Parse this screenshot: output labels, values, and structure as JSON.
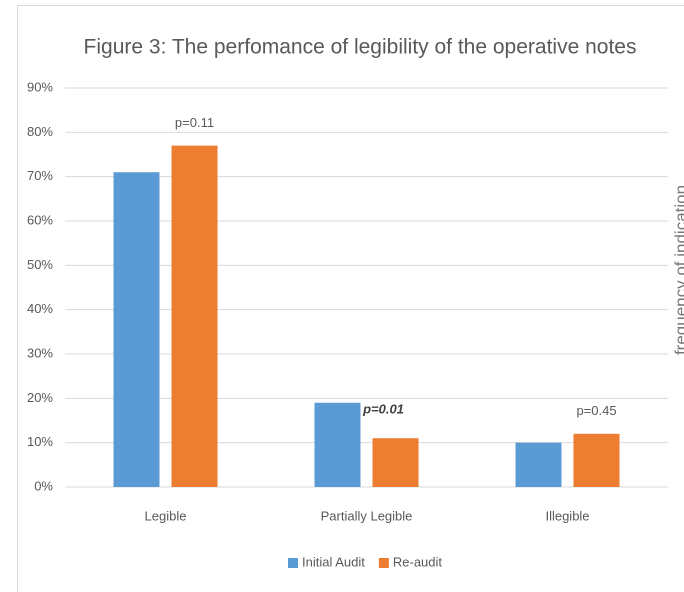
{
  "chart_data": {
    "type": "bar",
    "title": "Figure 3: The perfomance of legibility of the operative notes",
    "categories": [
      "Legible",
      "Partially Legible",
      "Illegible"
    ],
    "series": [
      {
        "name": "Initial Audit",
        "color": "#5b9bd5",
        "values": [
          71,
          19,
          10
        ]
      },
      {
        "name": "Re-audit",
        "color": "#ed7d31",
        "values": [
          77,
          11,
          12
        ]
      }
    ],
    "ylim": [
      0,
      90
    ],
    "yticks": [
      {
        "value": 0,
        "label": "0%"
      },
      {
        "value": 10,
        "label": "10%"
      },
      {
        "value": 20,
        "label": "20%"
      },
      {
        "value": 30,
        "label": "30%"
      },
      {
        "value": 40,
        "label": "40%"
      },
      {
        "value": 50,
        "label": "50%"
      },
      {
        "value": 60,
        "label": "60%"
      },
      {
        "value": 70,
        "label": "70%"
      },
      {
        "value": 80,
        "label": "80%"
      },
      {
        "value": 90,
        "label": "90%"
      }
    ],
    "grid": true,
    "legend": "bottom",
    "annotations": [
      {
        "text": "p=0.11"
      },
      {
        "text": "p=0.01",
        "bold_italic": true
      },
      {
        "text": "p=0.45"
      }
    ],
    "side_text": "frequency of indication"
  }
}
